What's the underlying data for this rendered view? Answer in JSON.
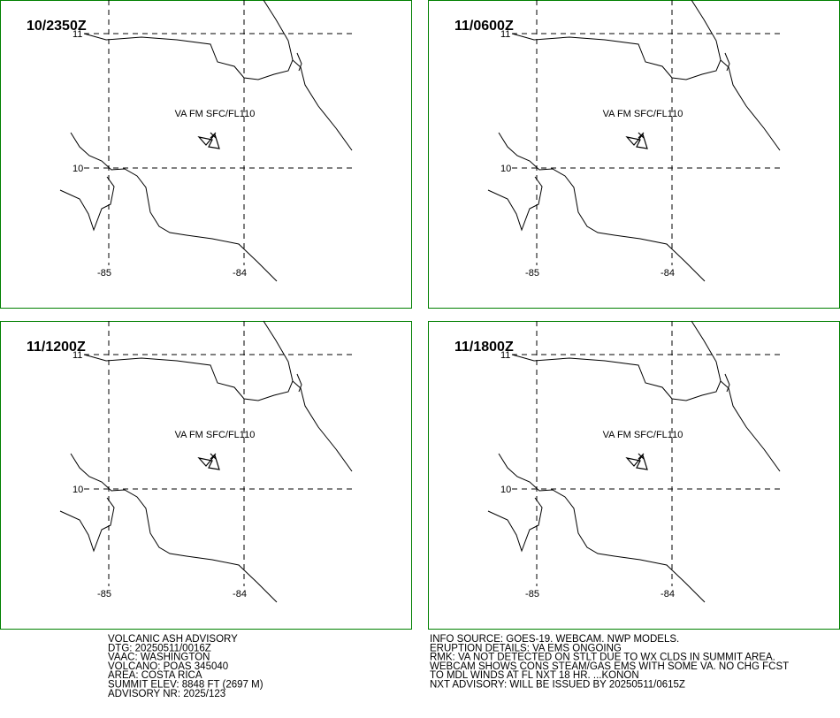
{
  "panels": [
    {
      "time": "10/2350Z",
      "area_label": "VA FM SFC/FL110",
      "lat_labels": [
        "11",
        "10"
      ],
      "lon_labels": [
        "-85",
        "-84"
      ]
    },
    {
      "time": "11/0600Z",
      "area_label": "VA FM SFC/FL110",
      "lat_labels": [
        "11",
        "10"
      ],
      "lon_labels": [
        "-85",
        "-84"
      ]
    },
    {
      "time": "11/1200Z",
      "area_label": "VA FM SFC/FL110",
      "lat_labels": [
        "11",
        "10"
      ],
      "lon_labels": [
        "-85",
        "-84"
      ]
    },
    {
      "time": "11/1800Z",
      "area_label": "VA FM SFC/FL110",
      "lat_labels": [
        "11",
        "10"
      ],
      "lon_labels": [
        "-85",
        "-84"
      ]
    }
  ],
  "advisory_left": [
    "VOLCANIC ASH ADVISORY",
    "DTG: 20250511/0016Z",
    "VAAC: WASHINGTON",
    "VOLCANO: POAS 345040",
    "AREA: COSTA  RICA",
    "SUMMIT ELEV: 8848 FT (2697 M)",
    "ADVISORY NR: 2025/123"
  ],
  "advisory_right": [
    "INFO SOURCE: GOES-19. WEBCAM. NWP MODELS.",
    "ERUPTION DETAILS: VA EMS ONGOING",
    "RMK: VA NOT DETECTED ON STLT DUE TO WX CLDS IN SUMMIT AREA.",
    "WEBCAM SHOWS CONS STEAM/GAS EMS WITH SOME VA. NO CHG FCST",
    "TO MDL WINDS AT FL NXT 18 HR. ...KONON",
    "NXT ADVISORY: WILL BE ISSUED BY 20250511/0615Z"
  ]
}
